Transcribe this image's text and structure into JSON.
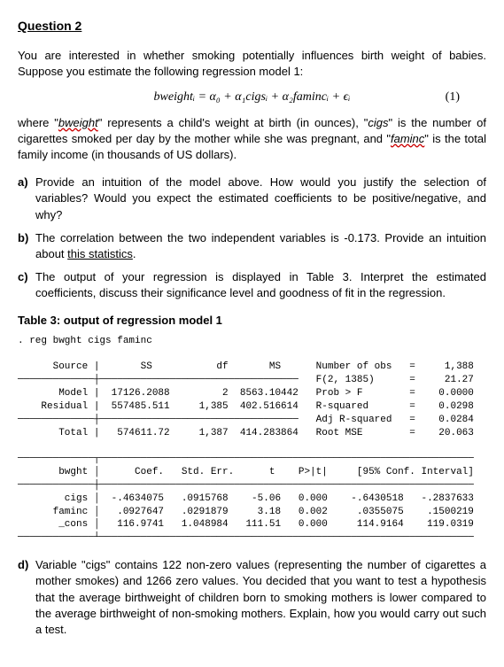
{
  "title": "Question 2",
  "intro1": "You are interested in whether smoking potentially influences birth weight of babies. Suppose you estimate the following regression model 1:",
  "equation": "bweightᵢ = α₀ + α₁cigsᵢ + α₂famincᵢ + ϵᵢ",
  "eqnum": "(1)",
  "intro2a": "where \"",
  "intro2b": "bweight",
  "intro2c": "\" represents a child's weight at birth (in ounces), \"",
  "intro2d": "cigs",
  "intro2e": "\" is the number of cigarettes smoked per day by the mother while she was pregnant, and \"",
  "intro2f": "faminc",
  "intro2g": "\" is the total family income (in thousands of US dollars).",
  "qa_lbl": "a)",
  "qa": "Provide an intuition of the model above. How would you justify the selection of variables? Would you expect the estimated coefficients to be positive/negative, and why?",
  "qb_lbl": "b)",
  "qb1": "The correlation between the two independent variables is -0.173. Provide an intuition about ",
  "qb2": "this statistics",
  "qb3": ".",
  "qc_lbl": "c)",
  "qc": "The output of your regression is displayed in Table 3. Interpret the estimated coefficients, discuss their significance level and goodness of fit in the regression.",
  "table_title": "Table 3: output of regression model 1",
  "stata": ". reg bwght cigs faminc\n\n      Source |       SS           df       MS      Number of obs   =     1,388\n─────────────┼──────────────────────────────────   F(2, 1385)      =     21.27\n       Model |  17126.2088         2  8563.10442   Prob > F        =    0.0000\n    Residual |  557485.511     1,385  402.516614   R-squared       =    0.0298\n─────────────┼──────────────────────────────────   Adj R-squared   =    0.0284\n       Total |   574611.72     1,387  414.283864   Root MSE        =    20.063\n\n─────────────┬────────────────────────────────────────────────────────────────\n       bwght │      Coef.   Std. Err.      t    P>|t|     [95% Conf. Interval]\n─────────────┼────────────────────────────────────────────────────────────────\n        cigs │  -.4634075   .0915768    -5.06   0.000    -.6430518   -.2837633\n      faminc │   .0927647   .0291879     3.18   0.002     .0355075    .1500219\n       _cons │   116.9741   1.048984   111.51   0.000     114.9164    119.0319\n─────────────┴────────────────────────────────────────────────────────────────",
  "qd_lbl": "d)",
  "qd": "Variable \"cigs\" contains 122 non-zero values (representing the number of cigarettes a mother smokes) and 1266 zero values. You decided that you want to test a hypothesis that the average birthweight of children born to smoking mothers is lower compared to the average birthweight of non-smoking mothers. Explain, how you would carry out such a test."
}
